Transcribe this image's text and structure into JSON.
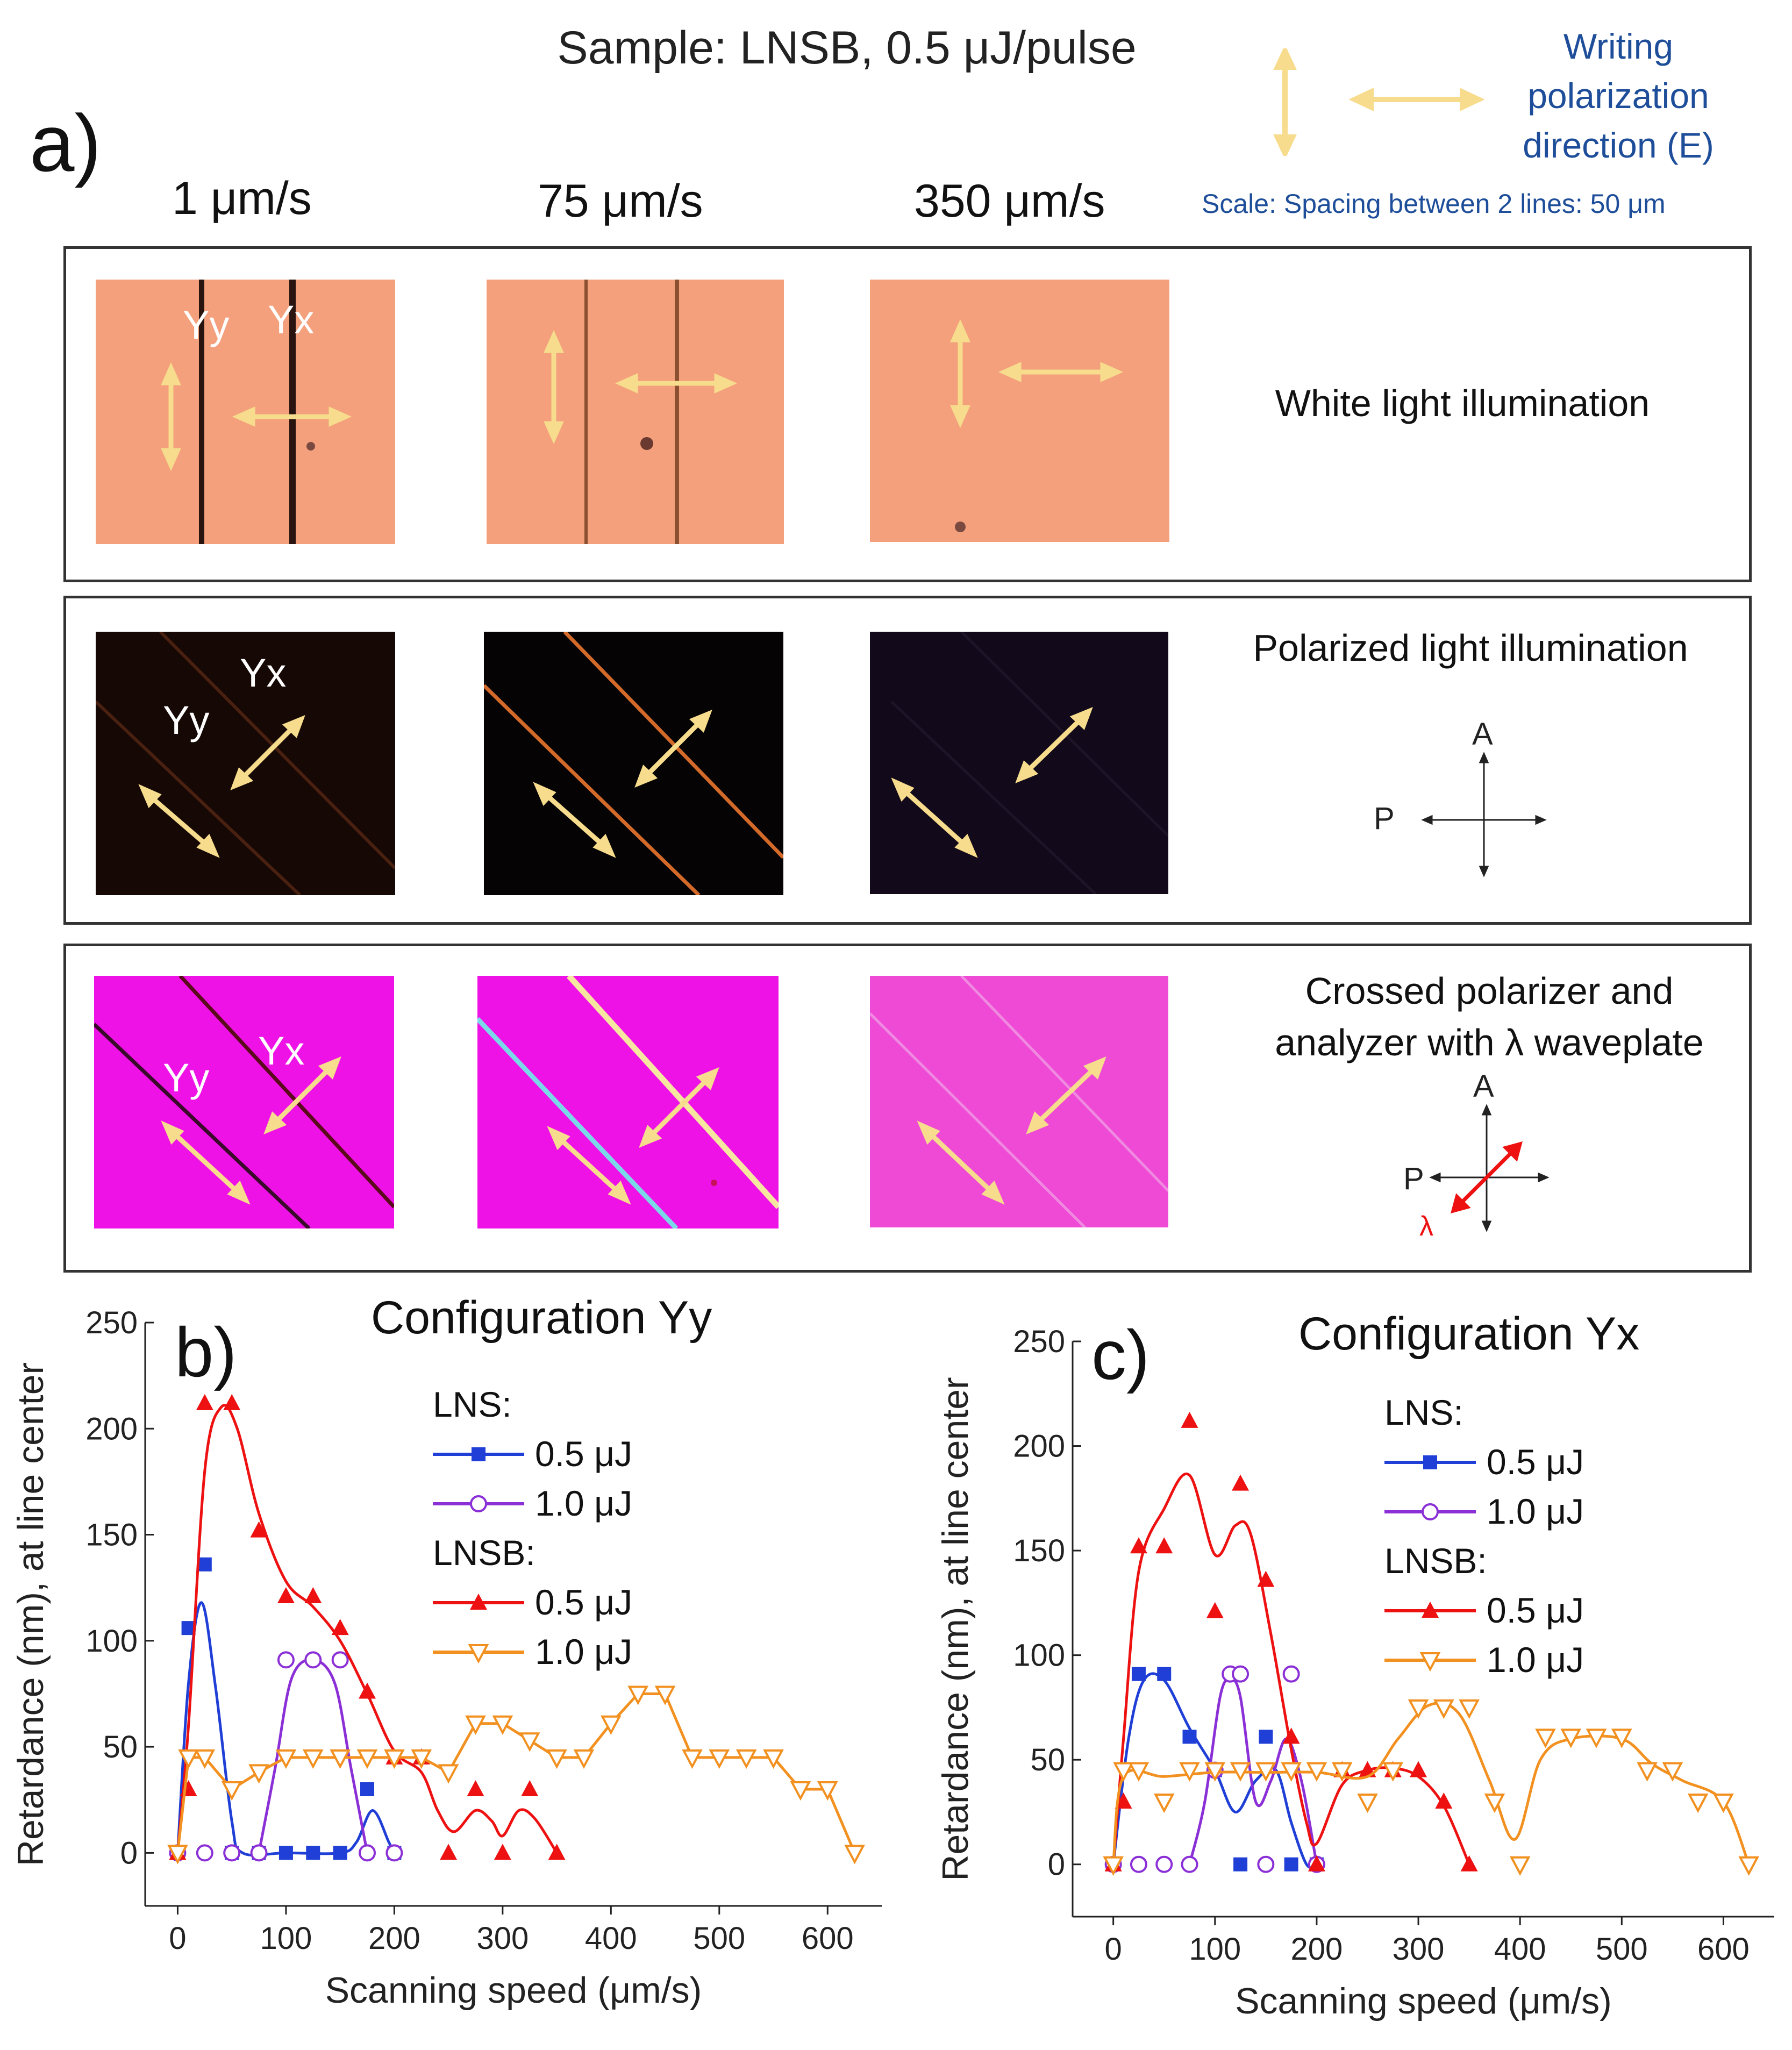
{
  "header": {
    "title": "Sample: LNSB, 0.5 μJ/pulse",
    "writing_legend": [
      "Writing",
      "polarization",
      "direction (E)"
    ],
    "scale_note": "Scale: Spacing between 2 lines: 50 μm",
    "panel_a_label": "a)",
    "speeds": [
      "1 μm/s",
      "75 μm/s",
      "350 μm/s"
    ]
  },
  "rows": [
    {
      "caption": "White light illumination"
    },
    {
      "caption": "Polarized light illumination",
      "axis_A": "A",
      "axis_P": "P"
    },
    {
      "caption_lines": [
        "Crossed polarizer and",
        "analyzer with λ waveplate"
      ],
      "axis_A": "A",
      "axis_P": "P",
      "axis_lambda": "λ"
    }
  ],
  "micrograph_labels": {
    "yy": "Yy",
    "yx": "Yx"
  },
  "colors": {
    "arrow": "#f6dc8c",
    "white_bg": "#f4a07c",
    "pol_bg": "#150805",
    "wave_bg": "#ee12e6",
    "series_blue": "#1f3fd6",
    "series_purple": "#8b2fd6",
    "series_red": "#ee1111",
    "series_orange": "#f29020",
    "legend_text_blue": "#1e4e9a"
  },
  "chart_data": [
    {
      "panel": "b)",
      "type": "scatter",
      "title": "Configuration Yy",
      "xlabel": "Scanning speed (μm/s)",
      "ylabel": "Retardance (nm), at line center",
      "xlim": [
        -30,
        650
      ],
      "ylim": [
        -25,
        250
      ],
      "xticks": [
        0,
        100,
        200,
        300,
        400,
        500,
        600
      ],
      "yticks": [
        0,
        50,
        100,
        150,
        200,
        250
      ],
      "legend_groups": [
        {
          "label": "LNS:",
          "entries": [
            {
              "series": 0,
              "label": "0.5 μJ"
            },
            {
              "series": 1,
              "label": "1.0 μJ"
            }
          ]
        },
        {
          "label": "LNSB:",
          "entries": [
            {
              "series": 2,
              "label": "0.5 μJ"
            },
            {
              "series": 3,
              "label": "1.0 μJ"
            }
          ]
        }
      ],
      "series": [
        {
          "name": "LNS 0.5 μJ",
          "color": "#1f3fd6",
          "marker": "square-filled",
          "points": [
            [
              0,
              0
            ],
            [
              10,
              106
            ],
            [
              25,
              136
            ],
            [
              50,
              0
            ],
            [
              75,
              0
            ],
            [
              100,
              0
            ],
            [
              125,
              0
            ],
            [
              150,
              0
            ],
            [
              175,
              30
            ],
            [
              200,
              0
            ]
          ],
          "curve": [
            [
              0,
              0
            ],
            [
              10,
              80
            ],
            [
              22,
              118
            ],
            [
              35,
              78
            ],
            [
              50,
              15
            ],
            [
              60,
              0
            ],
            [
              100,
              0
            ],
            [
              150,
              0
            ],
            [
              165,
              5
            ],
            [
              180,
              20
            ],
            [
              195,
              5
            ],
            [
              200,
              0
            ]
          ]
        },
        {
          "name": "LNS 1.0 μJ",
          "color": "#8b2fd6",
          "marker": "circle-open",
          "points": [
            [
              0,
              0
            ],
            [
              25,
              0
            ],
            [
              50,
              0
            ],
            [
              75,
              0
            ],
            [
              100,
              91
            ],
            [
              125,
              91
            ],
            [
              150,
              91
            ],
            [
              175,
              0
            ],
            [
              200,
              0
            ]
          ],
          "curve": [
            [
              75,
              0
            ],
            [
              90,
              40
            ],
            [
              105,
              82
            ],
            [
              125,
              91
            ],
            [
              145,
              80
            ],
            [
              160,
              40
            ],
            [
              175,
              0
            ]
          ]
        },
        {
          "name": "LNSB 0.5 μJ",
          "color": "#ee1111",
          "marker": "triangle-up-filled",
          "points": [
            [
              0,
              0
            ],
            [
              10,
              30
            ],
            [
              25,
              212
            ],
            [
              50,
              212
            ],
            [
              75,
              152
            ],
            [
              100,
              121
            ],
            [
              125,
              121
            ],
            [
              150,
              106
            ],
            [
              175,
              76
            ],
            [
              200,
              45
            ],
            [
              225,
              45
            ],
            [
              250,
              0
            ],
            [
              275,
              30
            ],
            [
              300,
              0
            ],
            [
              325,
              30
            ],
            [
              350,
              0
            ]
          ],
          "curve": [
            [
              0,
              0
            ],
            [
              10,
              60
            ],
            [
              25,
              180
            ],
            [
              40,
              210
            ],
            [
              55,
              200
            ],
            [
              75,
              160
            ],
            [
              100,
              128
            ],
            [
              125,
              116
            ],
            [
              150,
              100
            ],
            [
              175,
              75
            ],
            [
              200,
              48
            ],
            [
              225,
              38
            ],
            [
              240,
              20
            ],
            [
              255,
              10
            ],
            [
              275,
              20
            ],
            [
              290,
              15
            ],
            [
              300,
              8
            ],
            [
              315,
              20
            ],
            [
              330,
              16
            ],
            [
              350,
              0
            ]
          ]
        },
        {
          "name": "LNSB 1.0 μJ",
          "color": "#f29020",
          "marker": "triangle-down-open",
          "points": [
            [
              0,
              0
            ],
            [
              10,
              45
            ],
            [
              25,
              45
            ],
            [
              50,
              30
            ],
            [
              75,
              38
            ],
            [
              100,
              45
            ],
            [
              125,
              45
            ],
            [
              150,
              45
            ],
            [
              175,
              45
            ],
            [
              200,
              45
            ],
            [
              225,
              45
            ],
            [
              250,
              38
            ],
            [
              275,
              61
            ],
            [
              300,
              61
            ],
            [
              325,
              53
            ],
            [
              350,
              45
            ],
            [
              375,
              45
            ],
            [
              400,
              61
            ],
            [
              425,
              75
            ],
            [
              450,
              75
            ],
            [
              475,
              45
            ],
            [
              500,
              45
            ],
            [
              525,
              45
            ],
            [
              550,
              45
            ],
            [
              575,
              30
            ],
            [
              600,
              30
            ],
            [
              625,
              0
            ]
          ],
          "line": true
        }
      ]
    },
    {
      "panel": "c)",
      "type": "scatter",
      "title": "Configuration Yx",
      "xlabel": "Scanning speed (μm/s)",
      "ylabel": "Retardance (nm), at line center",
      "xlim": [
        -40,
        650
      ],
      "ylim": [
        -25,
        250
      ],
      "xticks": [
        0,
        100,
        200,
        300,
        400,
        500,
        600
      ],
      "yticks": [
        0,
        50,
        100,
        150,
        200,
        250
      ],
      "legend_groups": [
        {
          "label": "LNS:",
          "entries": [
            {
              "series": 0,
              "label": "0.5 μJ"
            },
            {
              "series": 1,
              "label": "1.0 μJ"
            }
          ]
        },
        {
          "label": "LNSB:",
          "entries": [
            {
              "series": 2,
              "label": "0.5 μJ"
            },
            {
              "series": 3,
              "label": "1.0 μJ"
            }
          ]
        }
      ],
      "series": [
        {
          "name": "LNS 0.5 μJ",
          "color": "#1f3fd6",
          "marker": "square-filled",
          "points": [
            [
              0,
              0
            ],
            [
              25,
              91
            ],
            [
              50,
              91
            ],
            [
              75,
              61
            ],
            [
              100,
              45
            ],
            [
              125,
              0
            ],
            [
              150,
              61
            ],
            [
              175,
              0
            ],
            [
              200,
              0
            ]
          ],
          "curve": [
            [
              0,
              0
            ],
            [
              15,
              60
            ],
            [
              30,
              88
            ],
            [
              50,
              88
            ],
            [
              75,
              65
            ],
            [
              100,
              45
            ],
            [
              120,
              25
            ],
            [
              140,
              40
            ],
            [
              160,
              45
            ],
            [
              175,
              20
            ],
            [
              190,
              0
            ],
            [
              200,
              0
            ]
          ]
        },
        {
          "name": "LNS 1.0 μJ",
          "color": "#8b2fd6",
          "marker": "circle-open",
          "points": [
            [
              0,
              0
            ],
            [
              25,
              0
            ],
            [
              50,
              0
            ],
            [
              75,
              0
            ],
            [
              100,
              45
            ],
            [
              115,
              91
            ],
            [
              125,
              91
            ],
            [
              150,
              0
            ],
            [
              175,
              91
            ],
            [
              200,
              0
            ]
          ],
          "curve": [
            [
              75,
              0
            ],
            [
              90,
              30
            ],
            [
              105,
              80
            ],
            [
              115,
              88
            ],
            [
              125,
              80
            ],
            [
              140,
              30
            ],
            [
              155,
              40
            ],
            [
              170,
              60
            ],
            [
              185,
              40
            ],
            [
              200,
              0
            ]
          ]
        },
        {
          "name": "LNSB 0.5 μJ",
          "color": "#ee1111",
          "marker": "triangle-up-filled",
          "points": [
            [
              0,
              0
            ],
            [
              10,
              30
            ],
            [
              25,
              152
            ],
            [
              50,
              152
            ],
            [
              75,
              212
            ],
            [
              100,
              121
            ],
            [
              125,
              182
            ],
            [
              150,
              136
            ],
            [
              175,
              61
            ],
            [
              200,
              0
            ],
            [
              225,
              45
            ],
            [
              250,
              45
            ],
            [
              275,
              45
            ],
            [
              300,
              45
            ],
            [
              325,
              30
            ],
            [
              350,
              0
            ]
          ],
          "curve": [
            [
              0,
              0
            ],
            [
              10,
              60
            ],
            [
              25,
              140
            ],
            [
              50,
              170
            ],
            [
              75,
              186
            ],
            [
              100,
              148
            ],
            [
              120,
              162
            ],
            [
              135,
              158
            ],
            [
              155,
              110
            ],
            [
              175,
              55
            ],
            [
              190,
              20
            ],
            [
              200,
              10
            ],
            [
              225,
              38
            ],
            [
              250,
              45
            ],
            [
              275,
              46
            ],
            [
              300,
              42
            ],
            [
              325,
              28
            ],
            [
              350,
              0
            ]
          ]
        },
        {
          "name": "LNSB 1.0 μJ",
          "color": "#f29020",
          "marker": "triangle-down-open",
          "points": [
            [
              0,
              0
            ],
            [
              10,
              45
            ],
            [
              25,
              45
            ],
            [
              50,
              30
            ],
            [
              75,
              45
            ],
            [
              100,
              45
            ],
            [
              125,
              45
            ],
            [
              150,
              45
            ],
            [
              175,
              45
            ],
            [
              200,
              45
            ],
            [
              225,
              45
            ],
            [
              250,
              30
            ],
            [
              275,
              45
            ],
            [
              300,
              75
            ],
            [
              325,
              75
            ],
            [
              350,
              75
            ],
            [
              375,
              30
            ],
            [
              400,
              0
            ],
            [
              425,
              61
            ],
            [
              450,
              61
            ],
            [
              475,
              61
            ],
            [
              500,
              61
            ],
            [
              525,
              45
            ],
            [
              550,
              45
            ],
            [
              575,
              30
            ],
            [
              600,
              30
            ],
            [
              625,
              0
            ]
          ],
          "curve": [
            [
              0,
              0
            ],
            [
              10,
              42
            ],
            [
              50,
              42
            ],
            [
              100,
              44
            ],
            [
              150,
              44
            ],
            [
              200,
              44
            ],
            [
              250,
              42
            ],
            [
              280,
              60
            ],
            [
              310,
              76
            ],
            [
              340,
              72
            ],
            [
              370,
              40
            ],
            [
              395,
              12
            ],
            [
              420,
              50
            ],
            [
              450,
              60
            ],
            [
              500,
              60
            ],
            [
              530,
              48
            ],
            [
              560,
              40
            ],
            [
              600,
              30
            ],
            [
              625,
              0
            ]
          ]
        }
      ]
    }
  ]
}
